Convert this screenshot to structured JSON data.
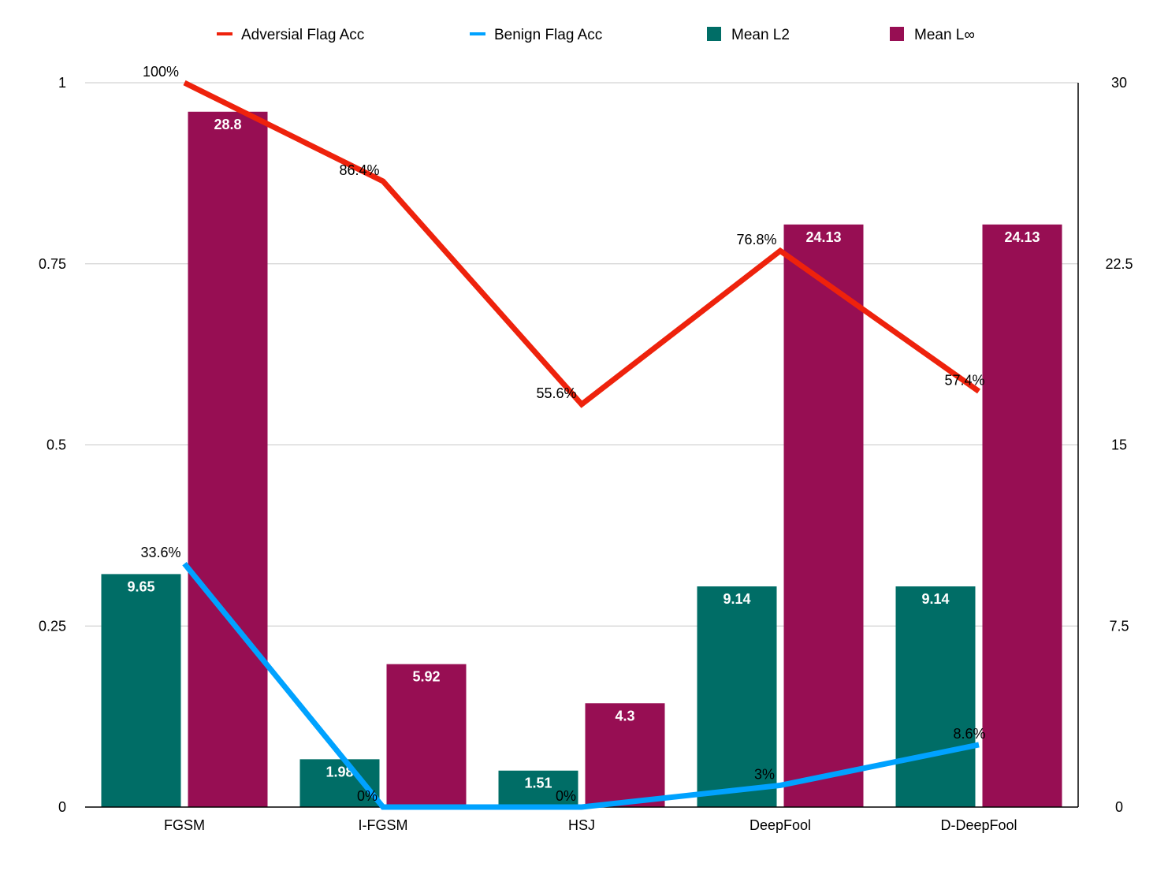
{
  "chart_data": {
    "type": "bar",
    "title": "",
    "xlabel": "",
    "ylabel": "",
    "categories": [
      "FGSM",
      "I-FGSM",
      "HSJ",
      "DeepFool",
      "D-DeepFool"
    ],
    "y_left": {
      "ylim": [
        0,
        1
      ],
      "ticks": [
        "0",
        "0.25",
        "0.5",
        "0.75",
        "1"
      ]
    },
    "y_right": {
      "ylim": [
        0,
        30
      ],
      "ticks": [
        "0",
        "7.5",
        "15",
        "22.5",
        "30"
      ]
    },
    "grid": true,
    "legend_position": "top",
    "bar_series": [
      {
        "name": "Mean L2",
        "color": "#006d66",
        "axis": "right",
        "values": [
          9.65,
          1.98,
          1.51,
          9.14,
          9.14
        ],
        "labels": [
          "9.65",
          "1.98",
          "1.51",
          "9.14",
          "9.14"
        ]
      },
      {
        "name": "Mean L∞",
        "color": "#970e53",
        "axis": "right",
        "values": [
          28.8,
          5.92,
          4.3,
          24.13,
          24.13
        ],
        "labels": [
          "28.8",
          "5.92",
          "4.3",
          "24.13",
          "24.13"
        ]
      }
    ],
    "line_series": [
      {
        "name": "Adversial Flag Acc",
        "color": "#ee220c",
        "axis": "left",
        "values": [
          1.0,
          0.864,
          0.556,
          0.768,
          0.574
        ],
        "labels": [
          "100%",
          "86.4%",
          "55.6%",
          "76.8%",
          "57.4%"
        ]
      },
      {
        "name": "Benign Flag Acc",
        "color": "#00a2ff",
        "axis": "left",
        "values": [
          0.336,
          0.0,
          0.0,
          0.03,
          0.086
        ],
        "labels": [
          "33.6%",
          "0%",
          "0%",
          "3%",
          "8.6%"
        ]
      }
    ],
    "legend": [
      {
        "name": "Adversial Flag Acc",
        "kind": "line",
        "color": "#ee220c"
      },
      {
        "name": "Benign Flag Acc",
        "kind": "line",
        "color": "#00a2ff"
      },
      {
        "name": "Mean L2",
        "kind": "square",
        "color": "#006d66"
      },
      {
        "name": "Mean L∞",
        "kind": "square",
        "color": "#970e53"
      }
    ]
  }
}
